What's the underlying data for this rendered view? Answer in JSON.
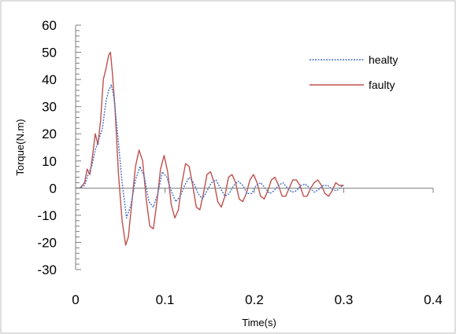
{
  "chart_data": {
    "type": "line",
    "title": "",
    "xlabel": "Time(s)",
    "ylabel": "Torque(N.m)",
    "xlim": [
      0,
      0.4
    ],
    "ylim": [
      -30,
      60
    ],
    "x_ticks": [
      0,
      0.1,
      0.2,
      0.3,
      0.4
    ],
    "x_tick_labels": [
      "0",
      "0.1",
      "0.2",
      "0.3",
      "0.4"
    ],
    "y_ticks": [
      60,
      50,
      40,
      30,
      20,
      10,
      0,
      -10,
      -20,
      -30
    ],
    "y_tick_labels": [
      "60",
      "50",
      "40",
      "30",
      "20",
      "10",
      "0",
      "-10",
      "-20",
      "-30"
    ],
    "grid": false,
    "legend_position": "top-right",
    "series": [
      {
        "name": "healty",
        "color": "#4472C4",
        "dash": "dotted",
        "x": [
          0,
          0.005,
          0.01,
          0.014,
          0.018,
          0.022,
          0.026,
          0.03,
          0.034,
          0.037,
          0.04,
          0.043,
          0.047,
          0.052,
          0.057,
          0.062,
          0.067,
          0.072,
          0.077,
          0.082,
          0.087,
          0.092,
          0.097,
          0.102,
          0.107,
          0.112,
          0.117,
          0.122,
          0.127,
          0.132,
          0.137,
          0.142,
          0.147,
          0.152,
          0.157,
          0.162,
          0.167,
          0.172,
          0.177,
          0.182,
          0.187,
          0.192,
          0.197,
          0.202,
          0.207,
          0.212,
          0.217,
          0.222,
          0.227,
          0.232,
          0.237,
          0.242,
          0.247,
          0.252,
          0.257,
          0.262,
          0.267,
          0.272,
          0.277,
          0.282,
          0.287,
          0.292,
          0.297,
          0.3
        ],
        "values": [
          0,
          0,
          1,
          5,
          8,
          14,
          18,
          22,
          32,
          36,
          38,
          33,
          20,
          2,
          -11,
          -6,
          3,
          8,
          4,
          -5,
          -7,
          -2,
          6,
          4,
          -1,
          -5,
          -3,
          1,
          4,
          2,
          -2,
          -4,
          -1,
          2,
          3,
          0,
          -3,
          -2,
          1,
          2.5,
          1,
          -2,
          -2,
          1,
          2,
          0,
          -2,
          -1,
          1,
          2,
          0,
          -1.5,
          -1,
          1,
          1.5,
          0,
          -1.5,
          -0.5,
          1,
          1,
          -0.5,
          -1,
          0.5,
          1
        ]
      },
      {
        "name": "faulty",
        "color": "#C0504D",
        "dash": "solid",
        "x": [
          0,
          0.005,
          0.01,
          0.013,
          0.016,
          0.019,
          0.022,
          0.025,
          0.028,
          0.031,
          0.034,
          0.037,
          0.039,
          0.041,
          0.044,
          0.048,
          0.052,
          0.056,
          0.059,
          0.063,
          0.067,
          0.071,
          0.075,
          0.079,
          0.083,
          0.087,
          0.091,
          0.095,
          0.099,
          0.103,
          0.107,
          0.111,
          0.115,
          0.119,
          0.123,
          0.127,
          0.131,
          0.135,
          0.139,
          0.143,
          0.147,
          0.151,
          0.155,
          0.159,
          0.163,
          0.167,
          0.171,
          0.175,
          0.179,
          0.183,
          0.187,
          0.191,
          0.195,
          0.199,
          0.203,
          0.207,
          0.211,
          0.215,
          0.219,
          0.223,
          0.227,
          0.231,
          0.235,
          0.239,
          0.243,
          0.247,
          0.251,
          0.255,
          0.259,
          0.263,
          0.267,
          0.271,
          0.275,
          0.279,
          0.283,
          0.287,
          0.291,
          0.295,
          0.3
        ],
        "values": [
          0,
          0,
          2,
          7,
          5,
          12,
          20,
          16,
          25,
          40,
          44,
          49,
          50,
          43,
          30,
          5,
          -12,
          -21,
          -18,
          -5,
          8,
          14,
          10,
          -4,
          -14,
          -15,
          -5,
          7,
          12,
          6,
          -6,
          -11,
          -8,
          2,
          9,
          8,
          1,
          -7,
          -8,
          -2,
          5,
          6,
          2,
          -5,
          -7,
          -3,
          4,
          5,
          2,
          -4,
          -5,
          -2,
          3,
          5,
          2,
          -3,
          -4,
          -1,
          3,
          4,
          1,
          -3,
          -3,
          0,
          3,
          3,
          1,
          -3,
          -3,
          0,
          2,
          3,
          1,
          -2,
          -3,
          -1,
          2,
          1,
          1
        ]
      }
    ]
  }
}
